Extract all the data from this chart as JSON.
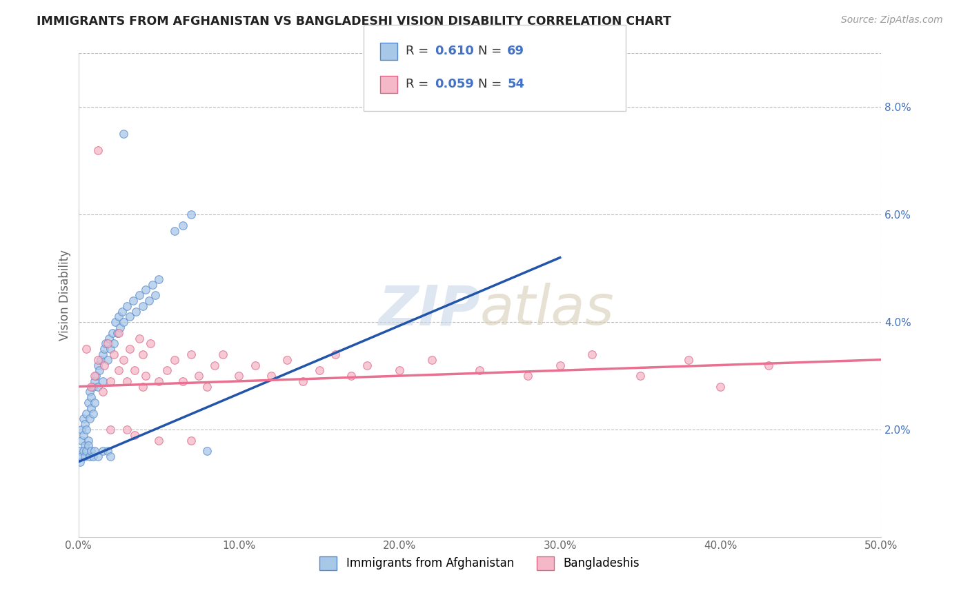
{
  "title": "IMMIGRANTS FROM AFGHANISTAN VS BANGLADESHI VISION DISABILITY CORRELATION CHART",
  "source": "Source: ZipAtlas.com",
  "ylabel": "Vision Disability",
  "xlim": [
    0.0,
    0.5
  ],
  "ylim": [
    0.0,
    0.09
  ],
  "yticks": [
    0.02,
    0.04,
    0.06,
    0.08
  ],
  "ytick_labels": [
    "2.0%",
    "4.0%",
    "6.0%",
    "8.0%"
  ],
  "xticks": [
    0.0,
    0.1,
    0.2,
    0.3,
    0.4,
    0.5
  ],
  "xtick_labels": [
    "0.0%",
    "10.0%",
    "20.0%",
    "30.0%",
    "40.0%",
    "50.0%"
  ],
  "series": [
    {
      "name": "Immigrants from Afghanistan",
      "color": "#a8c8e8",
      "edge_color": "#5588cc",
      "R": "0.610",
      "N": "69",
      "trend_color": "#2255aa",
      "trend_x": [
        0.0,
        0.3
      ],
      "trend_y": [
        0.014,
        0.052
      ]
    },
    {
      "name": "Bangladeshis",
      "color": "#f4b8c8",
      "edge_color": "#dd6688",
      "R": "0.059",
      "N": "54",
      "trend_color": "#e87090",
      "trend_x": [
        0.0,
        0.5
      ],
      "trend_y": [
        0.028,
        0.033
      ]
    }
  ],
  "background_color": "#ffffff",
  "grid_color": "#bbbbbb",
  "afghanistan_points": [
    [
      0.001,
      0.016
    ],
    [
      0.002,
      0.018
    ],
    [
      0.002,
      0.02
    ],
    [
      0.003,
      0.022
    ],
    [
      0.003,
      0.019
    ],
    [
      0.004,
      0.017
    ],
    [
      0.004,
      0.021
    ],
    [
      0.005,
      0.023
    ],
    [
      0.005,
      0.02
    ],
    [
      0.006,
      0.025
    ],
    [
      0.006,
      0.018
    ],
    [
      0.007,
      0.022
    ],
    [
      0.007,
      0.027
    ],
    [
      0.008,
      0.024
    ],
    [
      0.008,
      0.026
    ],
    [
      0.009,
      0.028
    ],
    [
      0.009,
      0.023
    ],
    [
      0.01,
      0.029
    ],
    [
      0.01,
      0.025
    ],
    [
      0.011,
      0.03
    ],
    [
      0.012,
      0.028
    ],
    [
      0.012,
      0.032
    ],
    [
      0.013,
      0.031
    ],
    [
      0.014,
      0.033
    ],
    [
      0.015,
      0.029
    ],
    [
      0.015,
      0.034
    ],
    [
      0.016,
      0.035
    ],
    [
      0.017,
      0.036
    ],
    [
      0.018,
      0.033
    ],
    [
      0.019,
      0.037
    ],
    [
      0.02,
      0.035
    ],
    [
      0.021,
      0.038
    ],
    [
      0.022,
      0.036
    ],
    [
      0.023,
      0.04
    ],
    [
      0.024,
      0.038
    ],
    [
      0.025,
      0.041
    ],
    [
      0.026,
      0.039
    ],
    [
      0.027,
      0.042
    ],
    [
      0.028,
      0.04
    ],
    [
      0.03,
      0.043
    ],
    [
      0.032,
      0.041
    ],
    [
      0.034,
      0.044
    ],
    [
      0.036,
      0.042
    ],
    [
      0.038,
      0.045
    ],
    [
      0.04,
      0.043
    ],
    [
      0.042,
      0.046
    ],
    [
      0.044,
      0.044
    ],
    [
      0.046,
      0.047
    ],
    [
      0.048,
      0.045
    ],
    [
      0.05,
      0.048
    ],
    [
      0.001,
      0.014
    ],
    [
      0.002,
      0.015
    ],
    [
      0.003,
      0.016
    ],
    [
      0.004,
      0.015
    ],
    [
      0.005,
      0.016
    ],
    [
      0.006,
      0.017
    ],
    [
      0.007,
      0.015
    ],
    [
      0.008,
      0.016
    ],
    [
      0.009,
      0.015
    ],
    [
      0.01,
      0.016
    ],
    [
      0.012,
      0.015
    ],
    [
      0.015,
      0.016
    ],
    [
      0.018,
      0.016
    ],
    [
      0.02,
      0.015
    ],
    [
      0.028,
      0.075
    ],
    [
      0.06,
      0.057
    ],
    [
      0.065,
      0.058
    ],
    [
      0.07,
      0.06
    ],
    [
      0.08,
      0.016
    ]
  ],
  "bangladeshi_points": [
    [
      0.005,
      0.035
    ],
    [
      0.008,
      0.028
    ],
    [
      0.01,
      0.03
    ],
    [
      0.012,
      0.033
    ],
    [
      0.015,
      0.027
    ],
    [
      0.016,
      0.032
    ],
    [
      0.018,
      0.036
    ],
    [
      0.02,
      0.029
    ],
    [
      0.022,
      0.034
    ],
    [
      0.025,
      0.031
    ],
    [
      0.025,
      0.038
    ],
    [
      0.028,
      0.033
    ],
    [
      0.03,
      0.029
    ],
    [
      0.032,
      0.035
    ],
    [
      0.035,
      0.031
    ],
    [
      0.038,
      0.037
    ],
    [
      0.04,
      0.028
    ],
    [
      0.04,
      0.034
    ],
    [
      0.042,
      0.03
    ],
    [
      0.045,
      0.036
    ],
    [
      0.05,
      0.029
    ],
    [
      0.055,
      0.031
    ],
    [
      0.06,
      0.033
    ],
    [
      0.065,
      0.029
    ],
    [
      0.07,
      0.034
    ],
    [
      0.075,
      0.03
    ],
    [
      0.08,
      0.028
    ],
    [
      0.085,
      0.032
    ],
    [
      0.09,
      0.034
    ],
    [
      0.1,
      0.03
    ],
    [
      0.11,
      0.032
    ],
    [
      0.12,
      0.03
    ],
    [
      0.13,
      0.033
    ],
    [
      0.14,
      0.029
    ],
    [
      0.15,
      0.031
    ],
    [
      0.16,
      0.034
    ],
    [
      0.17,
      0.03
    ],
    [
      0.18,
      0.032
    ],
    [
      0.2,
      0.031
    ],
    [
      0.22,
      0.033
    ],
    [
      0.25,
      0.031
    ],
    [
      0.28,
      0.03
    ],
    [
      0.3,
      0.032
    ],
    [
      0.32,
      0.034
    ],
    [
      0.35,
      0.03
    ],
    [
      0.38,
      0.033
    ],
    [
      0.4,
      0.028
    ],
    [
      0.43,
      0.032
    ],
    [
      0.012,
      0.072
    ],
    [
      0.02,
      0.02
    ],
    [
      0.03,
      0.02
    ],
    [
      0.035,
      0.019
    ],
    [
      0.05,
      0.018
    ],
    [
      0.07,
      0.018
    ]
  ]
}
